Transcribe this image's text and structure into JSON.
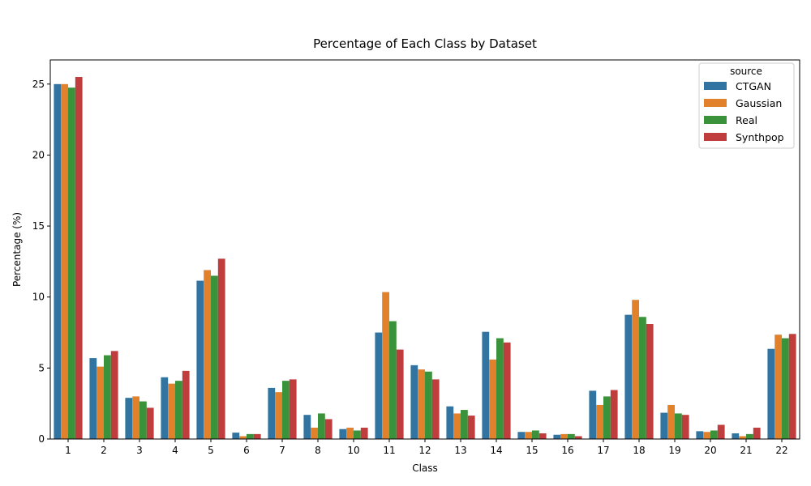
{
  "chart_data": {
    "type": "bar",
    "title": "Percentage of Each Class by Dataset",
    "xlabel": "Class",
    "ylabel": "Percentage (%)",
    "ylim": [
      0,
      26.7
    ],
    "yticks": [
      0,
      5,
      10,
      15,
      20,
      25
    ],
    "categories": [
      "1",
      "2",
      "3",
      "4",
      "5",
      "6",
      "7",
      "8",
      "10",
      "11",
      "12",
      "13",
      "14",
      "15",
      "16",
      "17",
      "18",
      "19",
      "20",
      "21",
      "22"
    ],
    "legend": {
      "title": "source",
      "position": "top-right"
    },
    "series": [
      {
        "name": "CTGAN",
        "color": "#3274a1",
        "values": [
          25.0,
          5.7,
          2.9,
          4.35,
          11.15,
          0.45,
          3.6,
          1.7,
          0.7,
          7.5,
          5.2,
          2.3,
          7.55,
          0.5,
          0.3,
          3.4,
          8.75,
          1.85,
          0.55,
          0.4,
          6.35
        ]
      },
      {
        "name": "Gaussian",
        "color": "#e1812c",
        "values": [
          25.0,
          5.1,
          3.0,
          3.9,
          11.9,
          0.2,
          3.3,
          0.8,
          0.8,
          10.35,
          4.9,
          1.8,
          5.6,
          0.5,
          0.35,
          2.4,
          9.8,
          2.4,
          0.5,
          0.2,
          7.35
        ]
      },
      {
        "name": "Real",
        "color": "#3a923a",
        "values": [
          24.75,
          5.9,
          2.65,
          4.1,
          11.5,
          0.35,
          4.1,
          1.8,
          0.6,
          8.3,
          4.75,
          2.05,
          7.1,
          0.6,
          0.35,
          3.0,
          8.6,
          1.8,
          0.6,
          0.35,
          7.1
        ]
      },
      {
        "name": "Synthpop",
        "color": "#c03d3e",
        "values": [
          25.5,
          6.2,
          2.2,
          4.8,
          12.7,
          0.35,
          4.2,
          1.4,
          0.8,
          6.3,
          4.2,
          1.65,
          6.8,
          0.4,
          0.2,
          3.45,
          8.1,
          1.7,
          1.0,
          0.8,
          7.4
        ]
      }
    ]
  }
}
